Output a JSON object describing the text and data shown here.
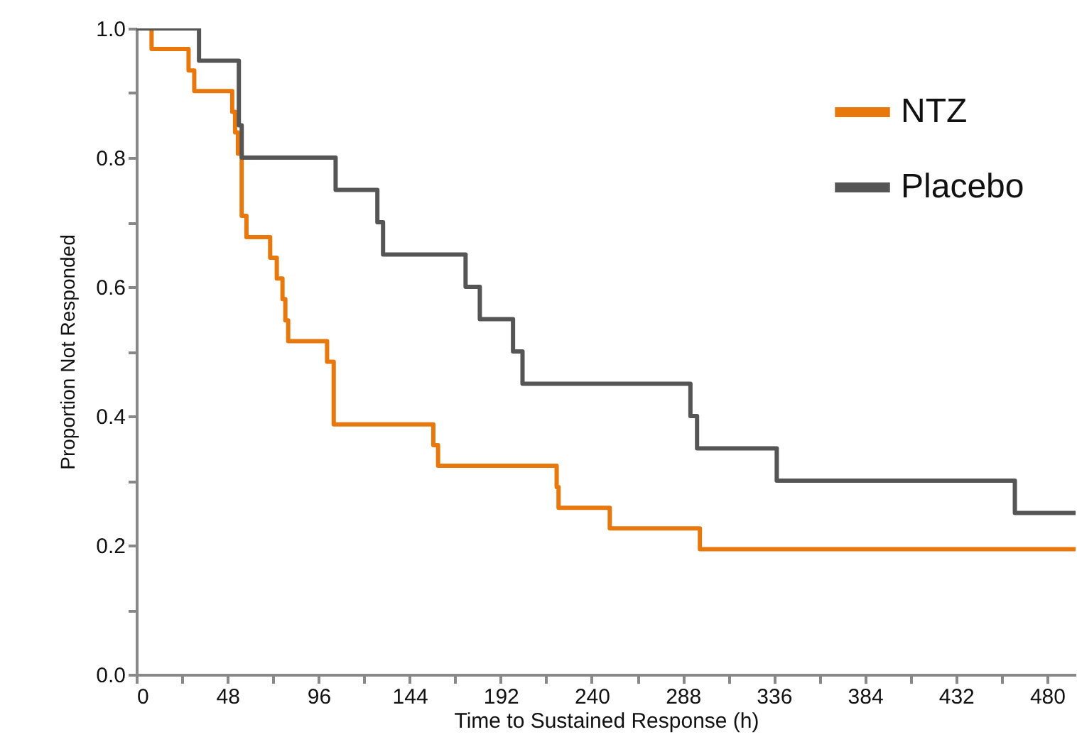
{
  "chart_data": {
    "type": "step",
    "xlabel": "Time to Sustained Response (h)",
    "ylabel": "Proportion Not Responded",
    "xlim": [
      0,
      495
    ],
    "ylim": [
      0,
      1.0
    ],
    "xticks": [
      0,
      {
        "value": 24,
        "label": null
      },
      48,
      {
        "value": 72,
        "label": null
      },
      96,
      {
        "value": 120,
        "label": null
      },
      144,
      {
        "value": 168,
        "label": null
      },
      192,
      {
        "value": 216,
        "label": null
      },
      240,
      {
        "value": 264,
        "label": null
      },
      288,
      {
        "value": 312,
        "label": null
      },
      336,
      {
        "value": 360,
        "label": null
      },
      384,
      {
        "value": 408,
        "label": null
      },
      432,
      {
        "value": 456,
        "label": null
      },
      480
    ],
    "yticks": [
      {
        "value": 0,
        "label": "0.0"
      },
      {
        "value": 0.1,
        "label": null
      },
      0.2,
      {
        "value": 0.3,
        "label": null
      },
      0.4,
      {
        "value": 0.5,
        "label": null
      },
      0.6,
      {
        "value": 0.7,
        "label": null
      },
      0.8,
      {
        "value": 0.9,
        "label": null
      },
      {
        "value": 1,
        "label": "1.0"
      }
    ],
    "legend": "top right",
    "grid": false,
    "line_style": "solid",
    "series": [
      {
        "name": "NTZ",
        "color": "#e8780c",
        "x": [
          0,
          8,
          27.5,
          30.5,
          50.5,
          52,
          53.5,
          55.5,
          58,
          70.5,
          74,
          77,
          78.5,
          80,
          100.5,
          104,
          156.5,
          159,
          221.5,
          222.5,
          249.5,
          297,
          495
        ],
        "values": [
          1.0,
          0.968,
          0.935,
          0.903,
          0.871,
          0.839,
          0.806,
          0.71,
          0.677,
          0.645,
          0.613,
          0.581,
          0.548,
          0.516,
          0.484,
          0.387,
          0.355,
          0.323,
          0.29,
          0.258,
          0.226,
          0.194,
          0.194
        ]
      },
      {
        "name": "Placebo",
        "color": "#555555",
        "x": [
          0,
          33,
          54,
          55.5,
          105,
          127,
          130,
          173.5,
          181,
          198.5,
          203.5,
          292,
          295.5,
          337.5,
          463,
          495
        ],
        "values": [
          1.0,
          0.95,
          0.85,
          0.8,
          0.75,
          0.7,
          0.65,
          0.6,
          0.55,
          0.5,
          0.45,
          0.4,
          0.35,
          0.3,
          0.25,
          0.25
        ]
      }
    ]
  }
}
